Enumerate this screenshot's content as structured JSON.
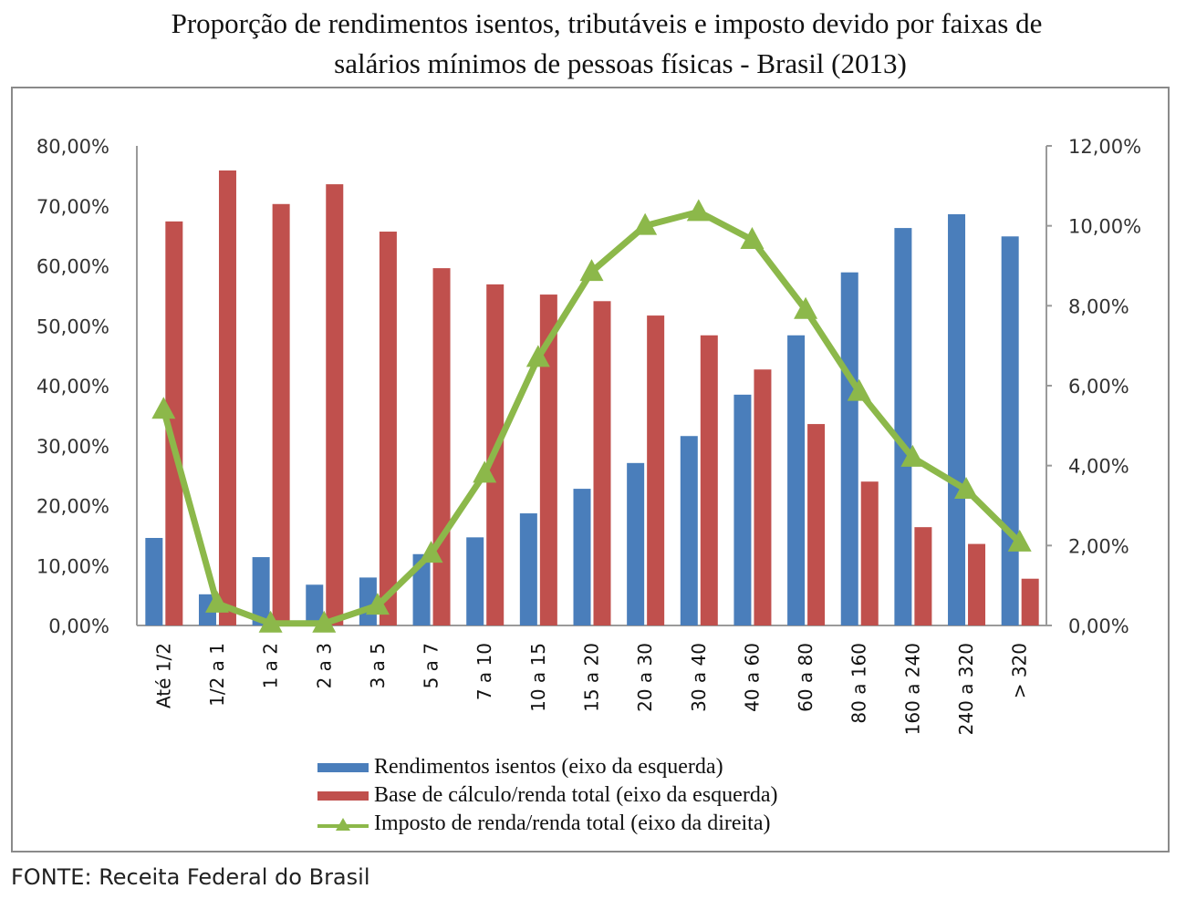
{
  "chart_data": {
    "type": "bar+line",
    "title_line1": "Proporção de rendimentos isentos, tributáveis e imposto devido por faixas de",
    "title_line2": "salários mínimos de pessoas físicas - Brasil (2013)",
    "categories": [
      "Até 1/2",
      "1/2 a 1",
      "1 a 2",
      "2 a 3",
      "3 a 5",
      "5 a 7",
      "7 a 10",
      "10 a 15",
      "15 a 20",
      "20 a 30",
      "30 a 40",
      "40 a 60",
      "60 a 80",
      "80 a 160",
      "160 a 240",
      "240 a 320",
      "> 320"
    ],
    "series": [
      {
        "name": "Rendimentos isentos (eixo da esquerda)",
        "type": "bar",
        "axis": "left",
        "color": "#4a7ebb",
        "values": [
          14.6,
          5.2,
          11.4,
          6.8,
          8.0,
          11.9,
          14.7,
          18.7,
          22.8,
          27.1,
          31.6,
          38.5,
          48.4,
          58.9,
          66.3,
          68.6,
          64.9
        ]
      },
      {
        "name": "Base de cálculo/renda total (eixo da esquerda)",
        "type": "bar",
        "axis": "left",
        "color": "#c0504d",
        "values": [
          67.4,
          75.9,
          70.3,
          73.6,
          65.7,
          59.6,
          56.9,
          55.2,
          54.1,
          51.7,
          48.4,
          42.7,
          33.6,
          24.0,
          16.4,
          13.6,
          7.8
        ]
      },
      {
        "name": "Imposto de renda/renda total (eixo da direita)",
        "type": "line",
        "axis": "right",
        "color": "#8cb84a",
        "values": [
          5.4,
          0.55,
          0.05,
          0.05,
          0.5,
          1.8,
          3.8,
          6.7,
          8.85,
          10.0,
          10.35,
          9.65,
          7.9,
          5.85,
          4.2,
          3.4,
          2.08
        ]
      }
    ],
    "left_axis": {
      "ylim": [
        0,
        80
      ],
      "ticks": [
        "0,00%",
        "10,00%",
        "20,00%",
        "30,00%",
        "40,00%",
        "50,00%",
        "60,00%",
        "70,00%",
        "80,00%"
      ]
    },
    "right_axis": {
      "ylim": [
        0,
        12
      ],
      "ticks": [
        "0,00%",
        "2,00%",
        "4,00%",
        "6,00%",
        "8,00%",
        "10,00%",
        "12,00%"
      ]
    },
    "legend_position": "bottom",
    "grid": false
  },
  "source": "FONTE: Receita Federal do Brasil"
}
